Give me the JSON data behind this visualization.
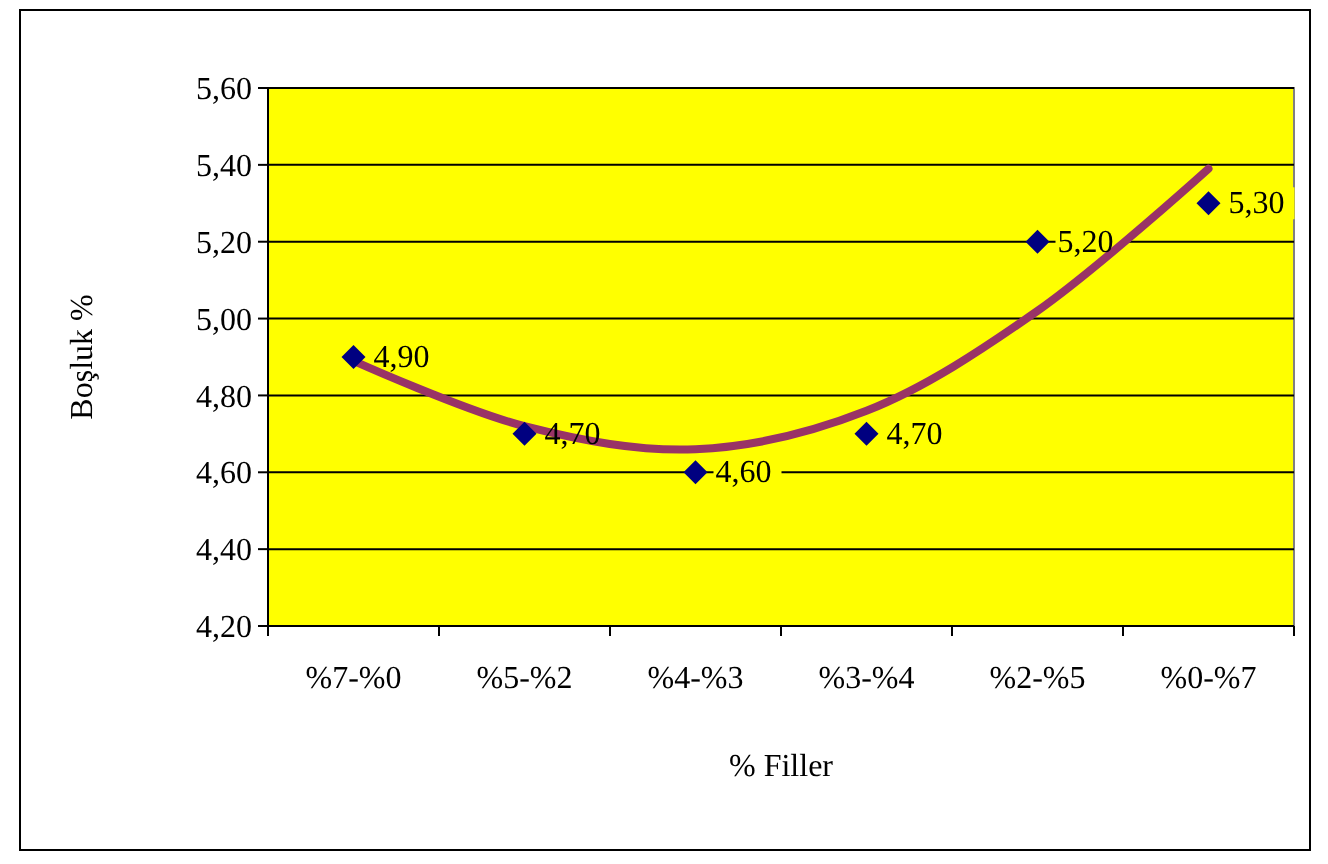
{
  "chart_data": {
    "type": "scatter",
    "xlabel": "% Filler",
    "ylabel": "Boşluk %",
    "categories": [
      "%7-%0",
      "%5-%2",
      "%4-%3",
      "%3-%4",
      "%2-%5",
      "%0-%7"
    ],
    "series": [
      {
        "type": "scatter",
        "color": "#000080",
        "values": [
          4.9,
          4.7,
          4.6,
          4.7,
          5.2,
          5.3
        ],
        "value_labels": [
          "4,90",
          "4,70",
          "4,60",
          "4,70",
          "5,20",
          "5,30"
        ],
        "marker": "diamond"
      },
      {
        "type": "line",
        "color": "#993366",
        "x": [
          "%7-%0",
          "%5-%2",
          "%4-%3",
          "%3-%4",
          "%2-%5",
          "%0-%7"
        ],
        "values": [
          4.89,
          4.72,
          4.66,
          4.76,
          5.02,
          5.39
        ],
        "marker": "none"
      }
    ],
    "ylim": [
      4.2,
      5.6
    ],
    "yticks": [
      {
        "value": 4.2,
        "label": "4,20"
      },
      {
        "value": 4.4,
        "label": "4,40"
      },
      {
        "value": 4.6,
        "label": "4,60"
      },
      {
        "value": 4.8,
        "label": "4,80"
      },
      {
        "value": 5.0,
        "label": "5,00"
      },
      {
        "value": 5.2,
        "label": "5,20"
      },
      {
        "value": 5.4,
        "label": "5,40"
      },
      {
        "value": 5.6,
        "label": "5,60"
      }
    ],
    "grid": "y",
    "legend": false
  }
}
